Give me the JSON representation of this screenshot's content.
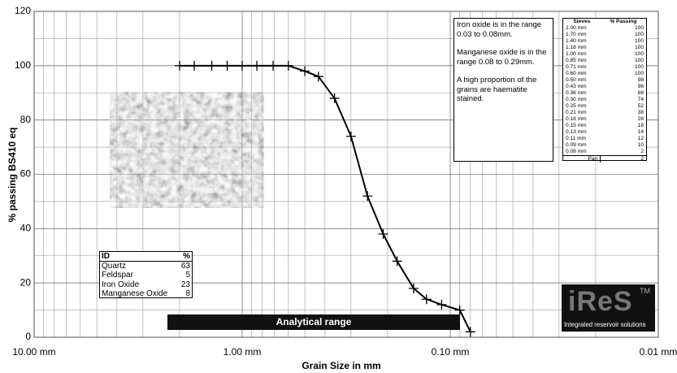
{
  "chart_data": {
    "type": "line",
    "x_label": "Grain Size in mm",
    "y_label": "% passing BS410 eq",
    "x": [
      2.0,
      1.7,
      1.4,
      1.18,
      1.0,
      0.85,
      0.71,
      0.6,
      0.5,
      0.43,
      0.36,
      0.3,
      0.25,
      0.21,
      0.18,
      0.15,
      0.13,
      0.11,
      0.09,
      0.08
    ],
    "values": [
      100,
      100,
      100,
      100,
      100,
      100,
      100,
      100,
      98,
      96,
      88,
      74,
      52,
      38,
      28,
      18,
      14,
      12,
      10,
      2
    ],
    "color": "#000000",
    "xlog": true,
    "grid": true,
    "xlim": [
      10,
      0.01
    ],
    "xticks": [
      {
        "value": 10,
        "label": "10.00 mm"
      },
      {
        "value": 1,
        "label": "1.00 mm"
      },
      {
        "value": 0.1,
        "label": "0.10 mm"
      },
      {
        "value": 0.01,
        "label": "0.01 mm"
      }
    ],
    "ylim": [
      0,
      120
    ],
    "yticks": [
      0,
      20,
      40,
      60,
      80,
      100,
      120
    ],
    "annotations": [
      "Analytical range"
    ]
  },
  "notes": [
    "Iron oxide is in the range 0.03 to 0.08mm.",
    "Manganese oxide is in the range 0.08 to 0.29mm.",
    "A high proportion of the grains are haematite stained."
  ],
  "sieve_table": {
    "header": [
      "Sieves",
      "% Passing"
    ],
    "rows": [
      [
        "2.00 mm",
        100
      ],
      [
        "1.70 mm",
        100
      ],
      [
        "1.40 mm",
        100
      ],
      [
        "1.18 mm",
        100
      ],
      [
        "1.00 mm",
        100
      ],
      [
        "0.85 mm",
        100
      ],
      [
        "0.71 mm",
        100
      ],
      [
        "0.60 mm",
        100
      ],
      [
        "0.50 mm",
        98
      ],
      [
        "0.43 mm",
        96
      ],
      [
        "0.36 mm",
        88
      ],
      [
        "0.30 mm",
        74
      ],
      [
        "0.25 mm",
        52
      ],
      [
        "0.21 mm",
        38
      ],
      [
        "0.18 mm",
        28
      ],
      [
        "0.15 mm",
        18
      ],
      [
        "0.13 mm",
        14
      ],
      [
        "0.11 mm",
        12
      ],
      [
        "0.09 mm",
        10
      ],
      [
        "0.08 mm",
        2
      ],
      [
        "Pan",
        2
      ]
    ]
  },
  "composition_table": {
    "header": [
      "ID",
      "%"
    ],
    "rows": [
      [
        "Quartz",
        63
      ],
      [
        "Feldspar",
        5
      ],
      [
        "Iron Oxide",
        23
      ],
      [
        "Manganese Oxide",
        8
      ]
    ]
  },
  "logo": {
    "name": "iReS",
    "mark": "TM",
    "tagline": "Integrated reservoir solutions"
  }
}
